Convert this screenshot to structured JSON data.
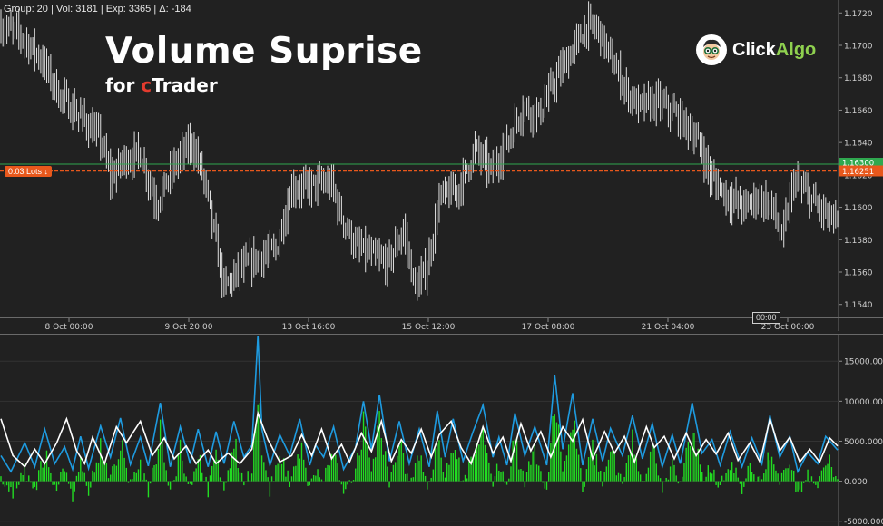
{
  "header": {
    "status_text": "Group: 20 | Vol: 3181 | Exp: 3365 | Δ: -184"
  },
  "overlay": {
    "title": "Volume Suprise",
    "subtitle_prefix": "for ",
    "subtitle_c": "c",
    "subtitle_rest": "Trader"
  },
  "logo": {
    "text_a": "Click",
    "text_b": "Algo",
    "icon": "clickalgo-mascot-icon"
  },
  "order_line": {
    "label": "0.03 Lots ↓",
    "price_label": "1.16251"
  },
  "current_price": {
    "label": "1.16300"
  },
  "crosshair_label": "00:00",
  "colors": {
    "background": "#212121",
    "bar": "#e0e0e0",
    "order_line": "#e8581c",
    "current_price_line": "#2fa84f",
    "histogram": "#22dd22",
    "blue_line": "#1e9be0",
    "white_line": "#ffffff"
  },
  "chart_data": [
    {
      "type": "bar",
      "style": "ohlc",
      "x_ticks": [
        "8 Oct 00:00",
        "9 Oct 20:00",
        "13 Oct 16:00",
        "15 Oct 12:00",
        "17 Oct 08:00",
        "21 Oct 04:00",
        "23 Oct 00:00"
      ],
      "y_ticks": [
        "1.1720",
        "1.1700",
        "1.1680",
        "1.1660",
        "1.1640",
        "1.1620",
        "1.1600",
        "1.1580",
        "1.1560",
        "1.1540"
      ],
      "ylim": [
        1.1532,
        1.1728
      ],
      "anchors": [
        [
          0,
          1.1712
        ],
        [
          10,
          1.1706
        ],
        [
          20,
          1.1692
        ],
        [
          30,
          1.1668
        ],
        [
          40,
          1.1656
        ],
        [
          50,
          1.1642
        ],
        [
          55,
          1.1618
        ],
        [
          62,
          1.163
        ],
        [
          70,
          1.1633
        ],
        [
          78,
          1.1603
        ],
        [
          88,
          1.1628
        ],
        [
          96,
          1.164
        ],
        [
          102,
          1.1617
        ],
        [
          112,
          1.155
        ],
        [
          120,
          1.1561
        ],
        [
          130,
          1.157
        ],
        [
          138,
          1.1573
        ],
        [
          146,
          1.1613
        ],
        [
          152,
          1.1612
        ],
        [
          160,
          1.1615
        ],
        [
          166,
          1.1614
        ],
        [
          170,
          1.1597
        ],
        [
          178,
          1.1576
        ],
        [
          186,
          1.157
        ],
        [
          194,
          1.1565
        ],
        [
          202,
          1.1586
        ],
        [
          208,
          1.1549
        ],
        [
          214,
          1.1563
        ],
        [
          220,
          1.1605
        ],
        [
          230,
          1.1612
        ],
        [
          238,
          1.1636
        ],
        [
          246,
          1.1622
        ],
        [
          254,
          1.164
        ],
        [
          262,
          1.1662
        ],
        [
          270,
          1.1657
        ],
        [
          278,
          1.1678
        ],
        [
          286,
          1.1695
        ],
        [
          294,
          1.1712
        ],
        [
          300,
          1.171
        ],
        [
          306,
          1.1692
        ],
        [
          314,
          1.1672
        ],
        [
          320,
          1.1662
        ],
        [
          330,
          1.1665
        ],
        [
          338,
          1.1658
        ],
        [
          346,
          1.1648
        ],
        [
          352,
          1.1635
        ],
        [
          356,
          1.1619
        ],
        [
          366,
          1.1605
        ],
        [
          374,
          1.16
        ],
        [
          380,
          1.1607
        ],
        [
          388,
          1.1598
        ],
        [
          392,
          1.158
        ],
        [
          398,
          1.1617
        ],
        [
          406,
          1.1606
        ],
        [
          414,
          1.1595
        ],
        [
          420,
          1.159
        ]
      ],
      "n_bars": 421
    },
    {
      "type": "bar",
      "style": "histogram-with-lines",
      "y_ticks": [
        "15000.000",
        "10000.000",
        "5000.000",
        "0.000",
        "-5000.000"
      ],
      "ylim": [
        -5600,
        18200
      ],
      "series": [
        {
          "name": "",
          "kind": "histogram"
        },
        {
          "name": "",
          "kind": "line"
        },
        {
          "name": "",
          "kind": "line"
        }
      ],
      "blue_anchors": [
        [
          0,
          3200
        ],
        [
          5,
          1200
        ],
        [
          12,
          4800
        ],
        [
          17,
          1800
        ],
        [
          22,
          6500
        ],
        [
          27,
          2200
        ],
        [
          32,
          4300
        ],
        [
          36,
          1500
        ],
        [
          40,
          5600
        ],
        [
          44,
          1600
        ],
        [
          50,
          6900
        ],
        [
          55,
          3000
        ],
        [
          60,
          7900
        ],
        [
          65,
          2100
        ],
        [
          70,
          5500
        ],
        [
          74,
          1900
        ],
        [
          80,
          9800
        ],
        [
          85,
          1800
        ],
        [
          90,
          6800
        ],
        [
          95,
          2200
        ],
        [
          99,
          6500
        ],
        [
          104,
          1800
        ],
        [
          108,
          6200
        ],
        [
          112,
          2200
        ],
        [
          117,
          7500
        ],
        [
          122,
          3000
        ],
        [
          126,
          4500
        ],
        [
          129,
          18200
        ],
        [
          131,
          6500
        ],
        [
          135,
          2000
        ],
        [
          140,
          5800
        ],
        [
          145,
          3200
        ],
        [
          150,
          7800
        ],
        [
          155,
          2000
        ],
        [
          158,
          4500
        ],
        [
          162,
          3000
        ],
        [
          167,
          6800
        ],
        [
          172,
          1500
        ],
        [
          178,
          4200
        ],
        [
          182,
          10000
        ],
        [
          186,
          4000
        ],
        [
          190,
          10800
        ],
        [
          195,
          2500
        ],
        [
          200,
          7500
        ],
        [
          205,
          2200
        ],
        [
          210,
          6500
        ],
        [
          215,
          1800
        ],
        [
          219,
          8800
        ],
        [
          223,
          3000
        ],
        [
          227,
          7800
        ],
        [
          232,
          2500
        ],
        [
          237,
          6200
        ],
        [
          242,
          9500
        ],
        [
          247,
          3000
        ],
        [
          250,
          5500
        ],
        [
          254,
          2000
        ],
        [
          258,
          8500
        ],
        [
          263,
          3200
        ],
        [
          268,
          6800
        ],
        [
          274,
          2000
        ],
        [
          278,
          13200
        ],
        [
          282,
          4000
        ],
        [
          287,
          11000
        ],
        [
          292,
          2000
        ],
        [
          297,
          7800
        ],
        [
          302,
          2500
        ],
        [
          306,
          6600
        ],
        [
          312,
          3200
        ],
        [
          317,
          8200
        ],
        [
          322,
          2800
        ],
        [
          327,
          7200
        ],
        [
          332,
          1800
        ],
        [
          337,
          5800
        ],
        [
          341,
          2200
        ],
        [
          347,
          9800
        ],
        [
          352,
          3500
        ],
        [
          357,
          5200
        ],
        [
          361,
          2000
        ],
        [
          366,
          6200
        ],
        [
          372,
          1800
        ],
        [
          377,
          5400
        ],
        [
          382,
          2200
        ],
        [
          386,
          8200
        ],
        [
          391,
          3000
        ],
        [
          396,
          5600
        ],
        [
          400,
          1200
        ],
        [
          405,
          3600
        ],
        [
          410,
          2200
        ],
        [
          414,
          5600
        ],
        [
          420,
          3900
        ]
      ],
      "white_anchors": [
        [
          0,
          7800
        ],
        [
          6,
          3200
        ],
        [
          12,
          1800
        ],
        [
          17,
          4000
        ],
        [
          22,
          2200
        ],
        [
          28,
          4800
        ],
        [
          33,
          7800
        ],
        [
          38,
          3800
        ],
        [
          42,
          2200
        ],
        [
          46,
          5500
        ],
        [
          52,
          2200
        ],
        [
          58,
          6800
        ],
        [
          63,
          4800
        ],
        [
          70,
          7500
        ],
        [
          76,
          3200
        ],
        [
          82,
          5400
        ],
        [
          87,
          2800
        ],
        [
          93,
          4400
        ],
        [
          98,
          2200
        ],
        [
          104,
          3900
        ],
        [
          108,
          2200
        ],
        [
          114,
          3500
        ],
        [
          120,
          2200
        ],
        [
          126,
          4000
        ],
        [
          129,
          8500
        ],
        [
          134,
          5200
        ],
        [
          140,
          2400
        ],
        [
          146,
          3200
        ],
        [
          151,
          5800
        ],
        [
          156,
          3200
        ],
        [
          161,
          6500
        ],
        [
          166,
          2800
        ],
        [
          171,
          4600
        ],
        [
          175,
          2400
        ],
        [
          181,
          6000
        ],
        [
          186,
          3700
        ],
        [
          191,
          7500
        ],
        [
          196,
          2500
        ],
        [
          201,
          5200
        ],
        [
          206,
          3500
        ],
        [
          211,
          6500
        ],
        [
          216,
          3000
        ],
        [
          220,
          5800
        ],
        [
          226,
          7500
        ],
        [
          231,
          4200
        ],
        [
          236,
          2200
        ],
        [
          242,
          6800
        ],
        [
          247,
          3500
        ],
        [
          252,
          5500
        ],
        [
          256,
          2500
        ],
        [
          261,
          7200
        ],
        [
          266,
          3800
        ],
        [
          271,
          6200
        ],
        [
          276,
          3000
        ],
        [
          282,
          6800
        ],
        [
          287,
          5000
        ],
        [
          292,
          7700
        ],
        [
          297,
          2800
        ],
        [
          303,
          6200
        ],
        [
          308,
          3500
        ],
        [
          313,
          5600
        ],
        [
          318,
          2400
        ],
        [
          324,
          6800
        ],
        [
          328,
          4200
        ],
        [
          333,
          5600
        ],
        [
          338,
          2800
        ],
        [
          344,
          6000
        ],
        [
          349,
          3200
        ],
        [
          354,
          5200
        ],
        [
          359,
          3400
        ],
        [
          365,
          6000
        ],
        [
          370,
          2600
        ],
        [
          376,
          4800
        ],
        [
          381,
          2400
        ],
        [
          386,
          7800
        ],
        [
          391,
          3800
        ],
        [
          396,
          5500
        ],
        [
          401,
          2400
        ],
        [
          406,
          4000
        ],
        [
          411,
          2400
        ],
        [
          416,
          5400
        ],
        [
          420,
          4400
        ]
      ]
    }
  ]
}
